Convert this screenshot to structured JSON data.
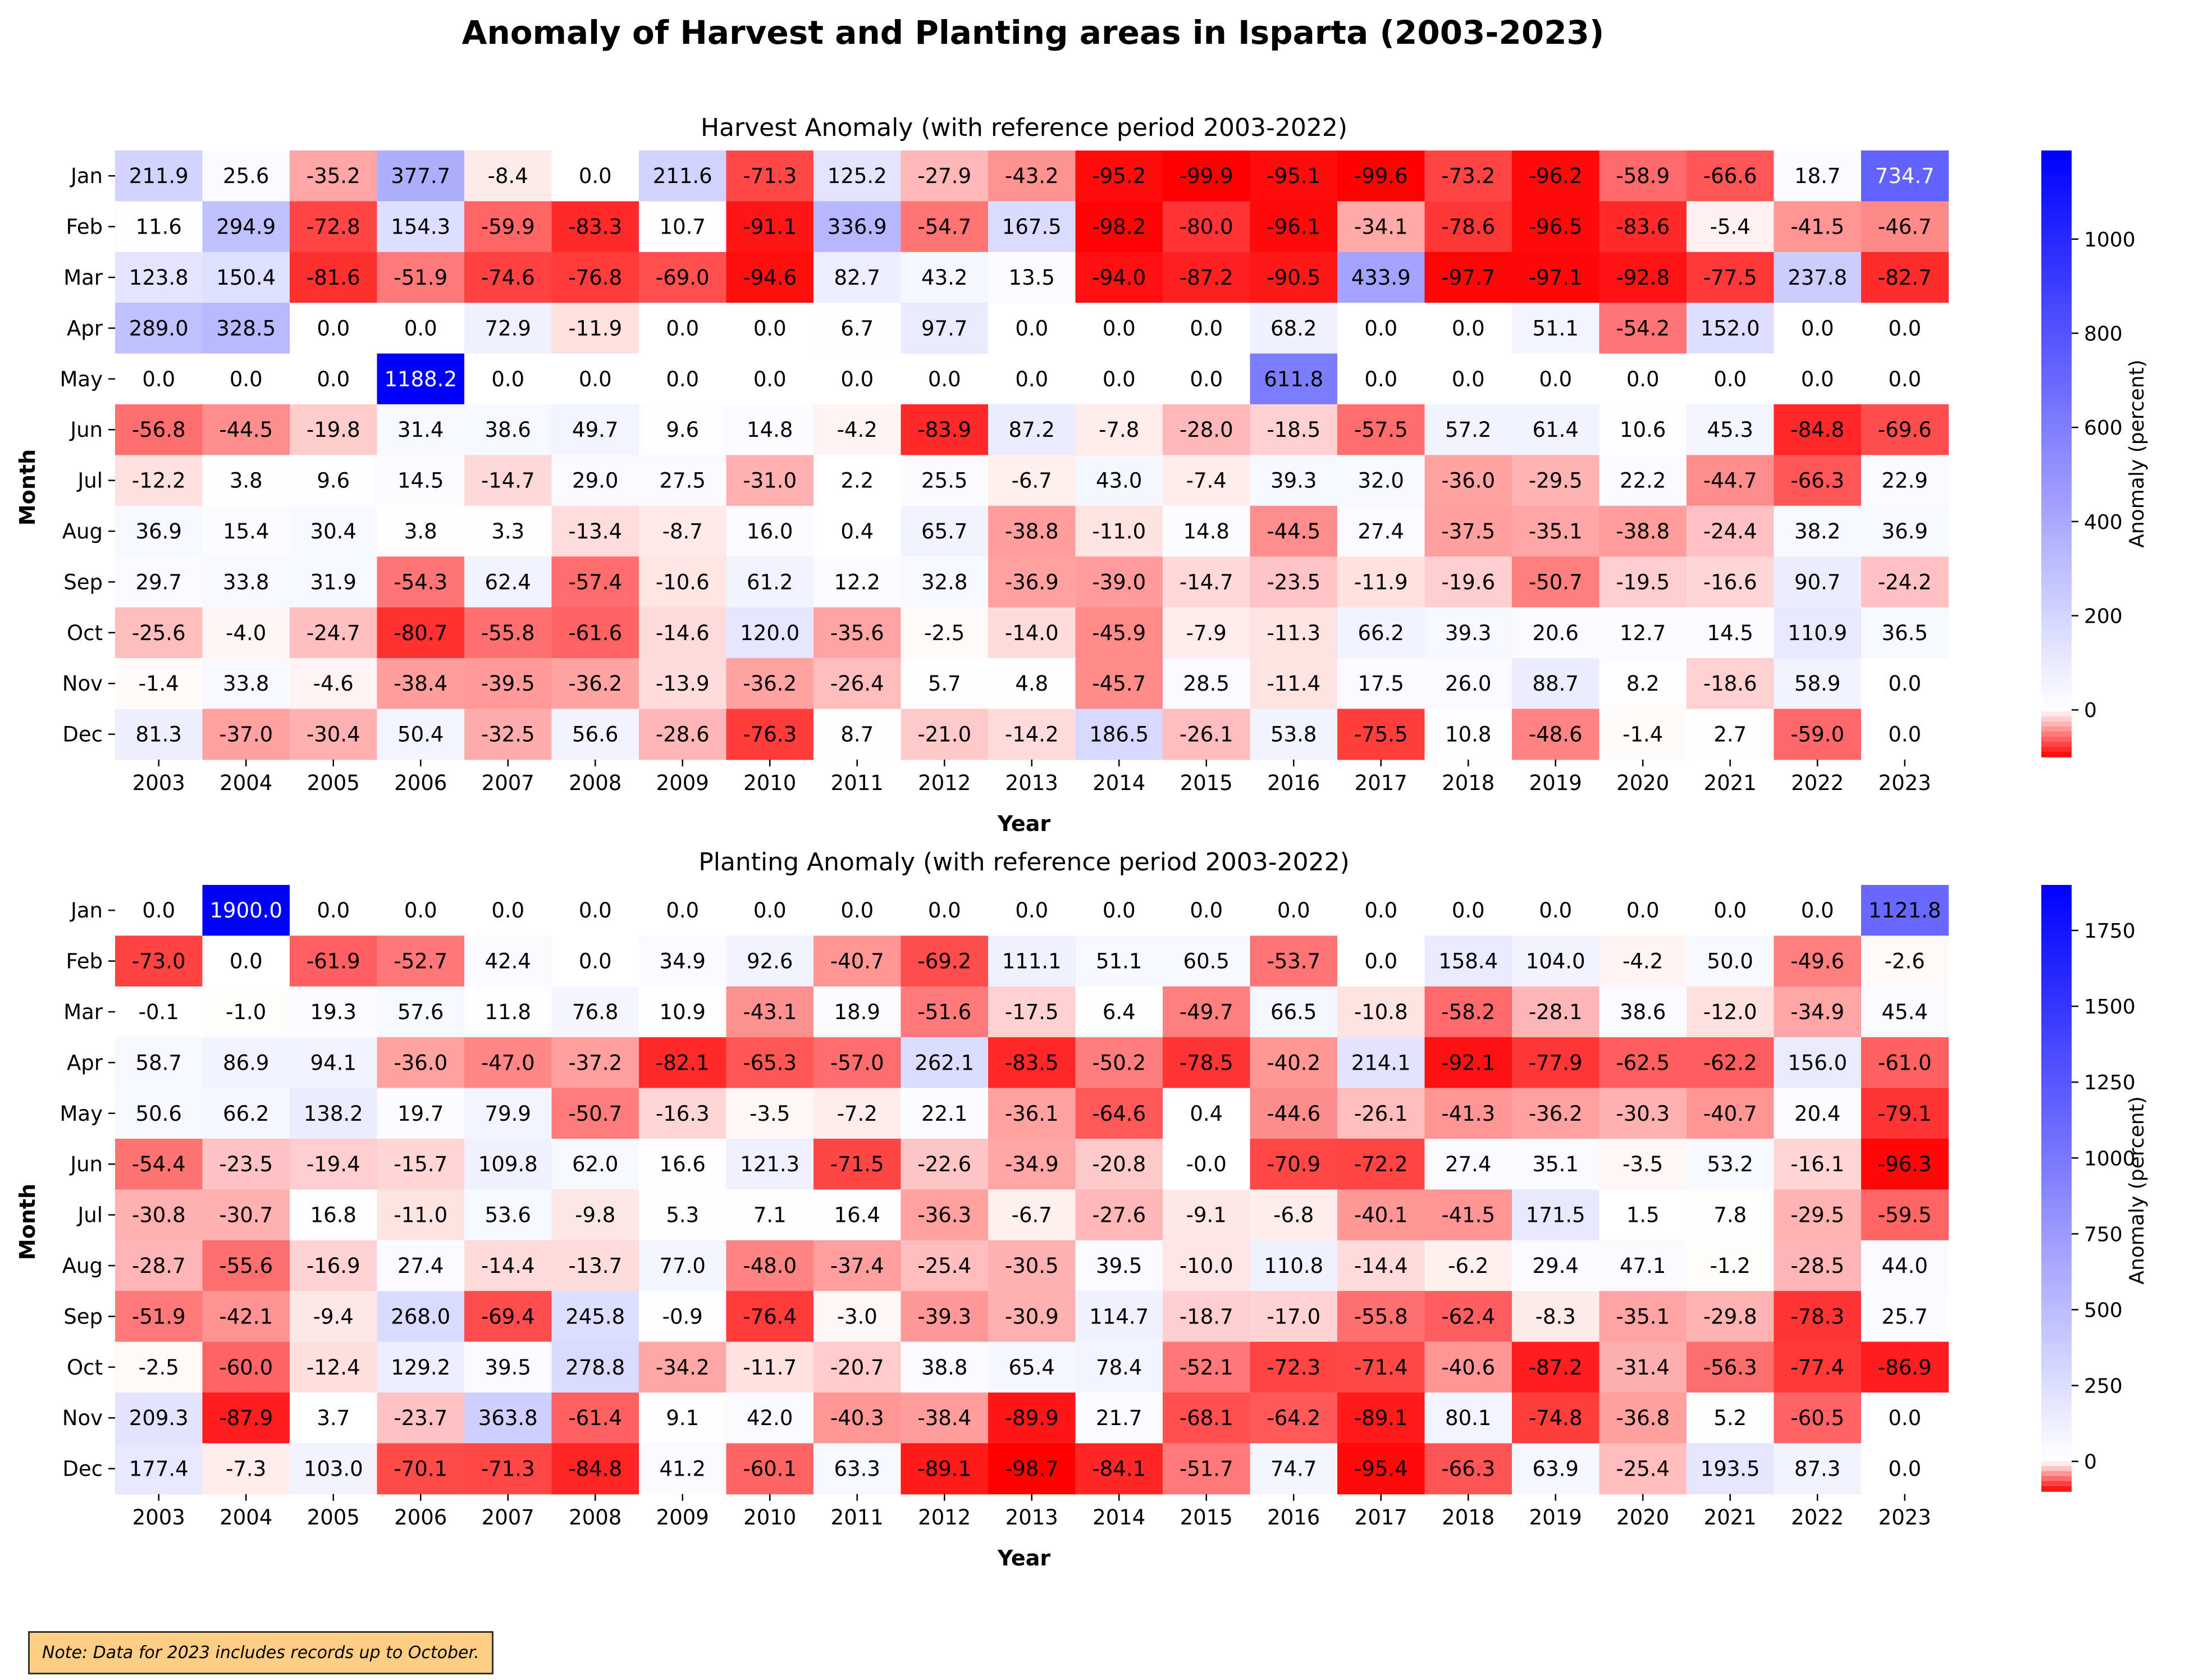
{
  "title": "Anomaly of Harvest and Planting areas in Isparta (2003-2023)",
  "note": "Note: Data for 2023 includes records up to October.",
  "colors": {
    "negative": "#ff0000",
    "zero": "#ffffff",
    "positive": "#0000ff"
  },
  "chart_data": [
    {
      "type": "heatmap",
      "title": "Harvest Anomaly (with reference period 2003-2022)",
      "xlabel": "Year",
      "ylabel": "Month",
      "colorbar_label": "Anomaly (percent)",
      "colorbar_ticks": [
        0,
        200,
        400,
        600,
        800,
        1000
      ],
      "vmin": -99.9,
      "vmax": 1188.2,
      "x": [
        "2003",
        "2004",
        "2005",
        "2006",
        "2007",
        "2008",
        "2009",
        "2010",
        "2011",
        "2012",
        "2013",
        "2014",
        "2015",
        "2016",
        "2017",
        "2018",
        "2019",
        "2020",
        "2021",
        "2022",
        "2023"
      ],
      "y": [
        "Jan",
        "Feb",
        "Mar",
        "Apr",
        "May",
        "Jun",
        "Jul",
        "Aug",
        "Sep",
        "Oct",
        "Nov",
        "Dec"
      ],
      "values": [
        [
          211.9,
          25.6,
          -35.2,
          377.7,
          -8.4,
          0.0,
          211.6,
          -71.3,
          125.2,
          -27.9,
          -43.2,
          -95.2,
          -99.9,
          -95.1,
          -99.6,
          -73.2,
          -96.2,
          -58.9,
          -66.6,
          18.7,
          734.7
        ],
        [
          11.6,
          294.9,
          -72.8,
          154.3,
          -59.9,
          -83.3,
          10.7,
          -91.1,
          336.9,
          -54.7,
          167.5,
          -98.2,
          -80.0,
          -96.1,
          -34.1,
          -78.6,
          -96.5,
          -83.6,
          -5.4,
          -41.5,
          -46.7
        ],
        [
          123.8,
          150.4,
          -81.6,
          -51.9,
          -74.6,
          -76.8,
          -69.0,
          -94.6,
          82.7,
          43.2,
          13.5,
          -94.0,
          -87.2,
          -90.5,
          433.9,
          -97.7,
          -97.1,
          -92.8,
          -77.5,
          237.8,
          -82.7
        ],
        [
          289.0,
          328.5,
          0.0,
          0.0,
          72.9,
          -11.9,
          0.0,
          0.0,
          6.7,
          97.7,
          0.0,
          0.0,
          0.0,
          68.2,
          0.0,
          0.0,
          51.1,
          -54.2,
          152.0,
          0.0,
          0.0
        ],
        [
          0.0,
          0.0,
          0.0,
          1188.2,
          0.0,
          0.0,
          0.0,
          0.0,
          0.0,
          0.0,
          0.0,
          0.0,
          0.0,
          611.8,
          0.0,
          0.0,
          0.0,
          0.0,
          0.0,
          0.0,
          0.0
        ],
        [
          -56.8,
          -44.5,
          -19.8,
          31.4,
          38.6,
          49.7,
          9.6,
          14.8,
          -4.2,
          -83.9,
          87.2,
          -7.8,
          -28.0,
          -18.5,
          -57.5,
          57.2,
          61.4,
          10.6,
          45.3,
          -84.8,
          -69.6
        ],
        [
          -12.2,
          3.8,
          9.6,
          14.5,
          -14.7,
          29.0,
          27.5,
          -31.0,
          2.2,
          25.5,
          -6.7,
          43.0,
          -7.4,
          39.3,
          32.0,
          -36.0,
          -29.5,
          22.2,
          -44.7,
          -66.3,
          22.9
        ],
        [
          36.9,
          15.4,
          30.4,
          3.8,
          3.3,
          -13.4,
          -8.7,
          16.0,
          0.4,
          65.7,
          -38.8,
          -11.0,
          14.8,
          -44.5,
          27.4,
          -37.5,
          -35.1,
          -38.8,
          -24.4,
          38.2,
          36.9
        ],
        [
          29.7,
          33.8,
          31.9,
          -54.3,
          62.4,
          -57.4,
          -10.6,
          61.2,
          12.2,
          32.8,
          -36.9,
          -39.0,
          -14.7,
          -23.5,
          -11.9,
          -19.6,
          -50.7,
          -19.5,
          -16.6,
          90.7,
          -24.2
        ],
        [
          -25.6,
          -4.0,
          -24.7,
          -80.7,
          -55.8,
          -61.6,
          -14.6,
          120.0,
          -35.6,
          -2.5,
          -14.0,
          -45.9,
          -7.9,
          -11.3,
          66.2,
          39.3,
          20.6,
          12.7,
          14.5,
          110.9,
          36.5
        ],
        [
          -1.4,
          33.8,
          -4.6,
          -38.4,
          -39.5,
          -36.2,
          -13.9,
          -36.2,
          -26.4,
          5.7,
          4.8,
          -45.7,
          28.5,
          -11.4,
          17.5,
          26.0,
          88.7,
          8.2,
          -18.6,
          58.9,
          0.0
        ],
        [
          81.3,
          -37.0,
          -30.4,
          50.4,
          -32.5,
          56.6,
          -28.6,
          -76.3,
          8.7,
          -21.0,
          -14.2,
          186.5,
          -26.1,
          53.8,
          -75.5,
          10.8,
          -48.6,
          -1.4,
          2.7,
          -59.0,
          0.0
        ]
      ]
    },
    {
      "type": "heatmap",
      "title": "Planting Anomaly (with reference period 2003-2022)",
      "xlabel": "Year",
      "ylabel": "Month",
      "colorbar_label": "Anomaly (percent)",
      "colorbar_ticks": [
        0,
        250,
        500,
        750,
        1000,
        1250,
        1500,
        1750
      ],
      "vmin": -98.7,
      "vmax": 1900.0,
      "x": [
        "2003",
        "2004",
        "2005",
        "2006",
        "2007",
        "2008",
        "2009",
        "2010",
        "2011",
        "2012",
        "2013",
        "2014",
        "2015",
        "2016",
        "2017",
        "2018",
        "2019",
        "2020",
        "2021",
        "2022",
        "2023"
      ],
      "y": [
        "Jan",
        "Feb",
        "Mar",
        "Apr",
        "May",
        "Jun",
        "Jul",
        "Aug",
        "Sep",
        "Oct",
        "Nov",
        "Dec"
      ],
      "values": [
        [
          0.0,
          1900.0,
          0.0,
          0.0,
          0.0,
          0.0,
          0.0,
          0.0,
          0.0,
          0.0,
          0.0,
          0.0,
          0.0,
          0.0,
          0.0,
          0.0,
          0.0,
          0.0,
          0.0,
          0.0,
          1121.8
        ],
        [
          -73.0,
          0.0,
          -61.9,
          -52.7,
          42.4,
          0.0,
          34.9,
          92.6,
          -40.7,
          -69.2,
          111.1,
          51.1,
          60.5,
          -53.7,
          0.0,
          158.4,
          104.0,
          -4.2,
          50.0,
          -49.6,
          -2.6
        ],
        [
          -0.1,
          -1.0,
          19.3,
          57.6,
          11.8,
          76.8,
          10.9,
          -43.1,
          18.9,
          -51.6,
          -17.5,
          6.4,
          -49.7,
          66.5,
          -10.8,
          -58.2,
          -28.1,
          38.6,
          -12.0,
          -34.9,
          45.4
        ],
        [
          58.7,
          86.9,
          94.1,
          -36.0,
          -47.0,
          -37.2,
          -82.1,
          -65.3,
          -57.0,
          262.1,
          -83.5,
          -50.2,
          -78.5,
          -40.2,
          214.1,
          -92.1,
          -77.9,
          -62.5,
          -62.2,
          156.0,
          -61.0
        ],
        [
          50.6,
          66.2,
          138.2,
          19.7,
          79.9,
          -50.7,
          -16.3,
          -3.5,
          -7.2,
          22.1,
          -36.1,
          -64.6,
          0.4,
          -44.6,
          -26.1,
          -41.3,
          -36.2,
          -30.3,
          -40.7,
          20.4,
          -79.1
        ],
        [
          -54.4,
          -23.5,
          -19.4,
          -15.7,
          109.8,
          62.0,
          16.6,
          121.3,
          -71.5,
          -22.6,
          -34.9,
          -20.8,
          -0.0,
          -70.9,
          -72.2,
          27.4,
          35.1,
          -3.5,
          53.2,
          -16.1,
          -96.3
        ],
        [
          -30.8,
          -30.7,
          16.8,
          -11.0,
          53.6,
          -9.8,
          5.3,
          7.1,
          16.4,
          -36.3,
          -6.7,
          -27.6,
          -9.1,
          -6.8,
          -40.1,
          -41.5,
          171.5,
          1.5,
          7.8,
          -29.5,
          -59.5
        ],
        [
          -28.7,
          -55.6,
          -16.9,
          27.4,
          -14.4,
          -13.7,
          77.0,
          -48.0,
          -37.4,
          -25.4,
          -30.5,
          39.5,
          -10.0,
          110.8,
          -14.4,
          -6.2,
          29.4,
          47.1,
          -1.2,
          -28.5,
          44.0
        ],
        [
          -51.9,
          -42.1,
          -9.4,
          268.0,
          -69.4,
          245.8,
          -0.9,
          -76.4,
          -3.0,
          -39.3,
          -30.9,
          114.7,
          -18.7,
          -17.0,
          -55.8,
          -62.4,
          -8.3,
          -35.1,
          -29.8,
          -78.3,
          25.7
        ],
        [
          -2.5,
          -60.0,
          -12.4,
          129.2,
          39.5,
          278.8,
          -34.2,
          -11.7,
          -20.7,
          38.8,
          65.4,
          78.4,
          -52.1,
          -72.3,
          -71.4,
          -40.6,
          -87.2,
          -31.4,
          -56.3,
          -77.4,
          -86.9
        ],
        [
          209.3,
          -87.9,
          3.7,
          -23.7,
          363.8,
          -61.4,
          9.1,
          42.0,
          -40.3,
          -38.4,
          -89.9,
          21.7,
          -68.1,
          -64.2,
          -89.1,
          80.1,
          -74.8,
          -36.8,
          5.2,
          -60.5,
          0.0
        ],
        [
          177.4,
          -7.3,
          103.0,
          -70.1,
          -71.3,
          -84.8,
          41.2,
          -60.1,
          63.3,
          -89.1,
          -98.7,
          -84.1,
          -51.7,
          74.7,
          -95.4,
          -66.3,
          63.9,
          -25.4,
          193.5,
          87.3,
          0.0
        ]
      ]
    }
  ]
}
